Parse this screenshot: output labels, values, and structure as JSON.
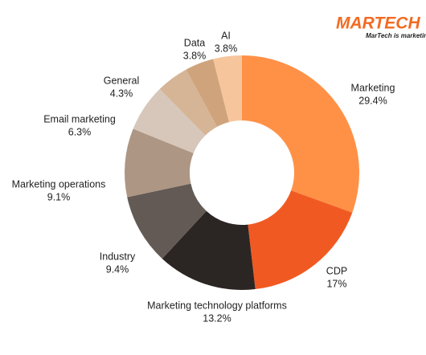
{
  "logo": {
    "brand": "MARTECH",
    "tagline": "MarTech is marketing."
  },
  "chart_data": {
    "type": "donut",
    "categories": [
      "Marketing",
      "CDP",
      "Marketing technology platforms",
      "Industry",
      "Marketing operations",
      "Email marketing",
      "General",
      "Data",
      "AI"
    ],
    "values": [
      29.4,
      17,
      13.2,
      9.4,
      9.1,
      6.3,
      4.3,
      3.8,
      3.8
    ],
    "value_labels": [
      "29.4%",
      "17%",
      "13.2%",
      "9.4%",
      "9.1%",
      "6.3%",
      "4.3%",
      "3.8%",
      "3.8%"
    ],
    "colors": [
      "#ff9147",
      "#f05a22",
      "#2b2523",
      "#635a55",
      "#ae9684",
      "#d6c7ba",
      "#d5b596",
      "#cfa47c",
      "#f7c59c"
    ]
  }
}
